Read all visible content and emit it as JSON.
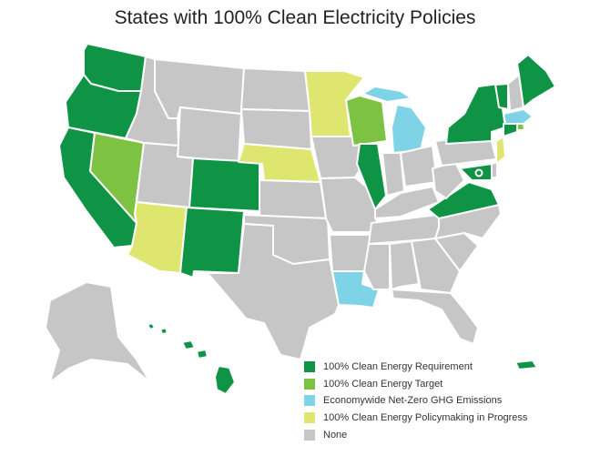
{
  "title": "States with 100% Clean Electricity Policies",
  "colors": {
    "requirement": "#0f9445",
    "target": "#7dc242",
    "netzero": "#7fd3e6",
    "progress": "#dfe66f",
    "none": "#c6c6c6"
  },
  "legend": [
    {
      "category": "requirement",
      "label": "100% Clean Energy Requirement"
    },
    {
      "category": "target",
      "label": "100% Clean Energy Target"
    },
    {
      "category": "netzero",
      "label": "Economywide Net-Zero GHG Emissions"
    },
    {
      "category": "progress",
      "label": "100% Clean Energy Policymaking in Progress"
    },
    {
      "category": "none",
      "label": "None"
    }
  ],
  "states": {
    "Washington": "requirement",
    "Oregon": "requirement",
    "California": "requirement",
    "Nevada": "target",
    "Colorado": "requirement",
    "New Mexico": "requirement",
    "Arizona": "progress",
    "Nebraska": "progress",
    "Minnesota": "progress",
    "Wisconsin": "target",
    "Michigan": "netzero",
    "Illinois": "requirement",
    "Louisiana": "netzero",
    "Virginia": "requirement",
    "New York": "requirement",
    "Maine": "requirement",
    "Vermont": "requirement",
    "New Hampshire": "none",
    "Massachusetts": "netzero",
    "Rhode Island": "target",
    "Connecticut": "requirement",
    "New Jersey": "progress",
    "Maryland": "requirement",
    "Delaware": "none",
    "District of Columbia": "requirement",
    "Hawaii": "requirement",
    "Puerto Rico": "requirement",
    "Alaska": "none",
    "Idaho": "none",
    "Montana": "none",
    "Wyoming": "none",
    "Utah": "none",
    "North Dakota": "none",
    "South Dakota": "none",
    "Kansas": "none",
    "Oklahoma": "none",
    "Texas": "none",
    "Iowa": "none",
    "Missouri": "none",
    "Arkansas": "none",
    "Mississippi": "none",
    "Alabama": "none",
    "Georgia": "none",
    "Florida": "none",
    "Tennessee": "none",
    "Kentucky": "none",
    "Indiana": "none",
    "Ohio": "none",
    "West Virginia": "none",
    "Pennsylvania": "none",
    "North Carolina": "none",
    "South Carolina": "none"
  }
}
